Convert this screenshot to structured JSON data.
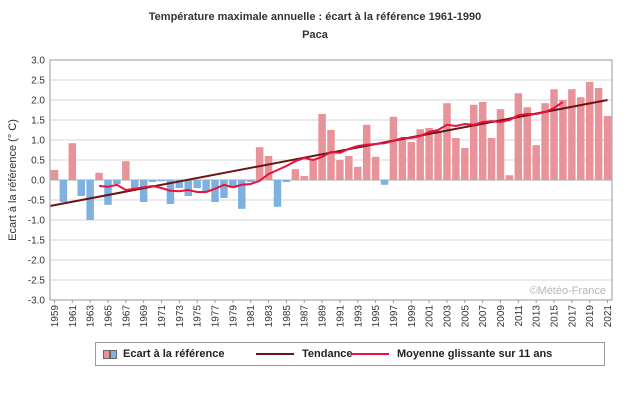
{
  "chart_data": {
    "type": "bar",
    "title": "Température maximale annuelle : écart à la référence 1961-1990",
    "subtitle": "Paca",
    "ylabel": "Ecart à la référence (° C)",
    "xlabel": "",
    "ylim": [
      -3.0,
      3.0
    ],
    "yticks": [
      "3.0",
      "2.5",
      "2.0",
      "1.5",
      "1.0",
      "0.5",
      "0.0",
      "-0.5",
      "-1.0",
      "-1.5",
      "-2.0",
      "-2.5",
      "-3.0"
    ],
    "xticks": [
      "1959",
      "1961",
      "1963",
      "1965",
      "1967",
      "1969",
      "1971",
      "1973",
      "1975",
      "1977",
      "1979",
      "1981",
      "1983",
      "1985",
      "1987",
      "1989",
      "1991",
      "1993",
      "1995",
      "1997",
      "1999",
      "2001",
      "2003",
      "2005",
      "2007",
      "2009",
      "2011",
      "2013",
      "2015",
      "2017",
      "2019",
      "2021"
    ],
    "years": [
      1959,
      1960,
      1961,
      1962,
      1963,
      1964,
      1965,
      1966,
      1967,
      1968,
      1969,
      1970,
      1971,
      1972,
      1973,
      1974,
      1975,
      1976,
      1977,
      1978,
      1979,
      1980,
      1981,
      1982,
      1983,
      1984,
      1985,
      1986,
      1987,
      1988,
      1989,
      1990,
      1991,
      1992,
      1993,
      1994,
      1995,
      1996,
      1997,
      1998,
      1999,
      2000,
      2001,
      2002,
      2003,
      2004,
      2005,
      2006,
      2007,
      2008,
      2009,
      2010,
      2011,
      2012,
      2013,
      2014,
      2015,
      2016,
      2017,
      2018,
      2019,
      2020,
      2021
    ],
    "series": [
      {
        "name": "Ecart à la référence",
        "values": [
          0.25,
          -0.55,
          0.92,
          -0.4,
          -1.0,
          0.18,
          -0.62,
          -0.1,
          0.47,
          -0.2,
          -0.55,
          -0.05,
          -0.03,
          -0.6,
          -0.2,
          -0.4,
          -0.2,
          -0.3,
          -0.55,
          -0.45,
          -0.2,
          -0.72,
          -0.05,
          0.82,
          0.6,
          -0.67,
          -0.05,
          0.27,
          0.1,
          0.5,
          1.65,
          1.25,
          0.5,
          0.6,
          0.33,
          1.38,
          0.58,
          -0.12,
          1.58,
          1.02,
          0.95,
          1.27,
          1.3,
          1.22,
          1.92,
          1.05,
          0.8,
          1.88,
          1.95,
          1.05,
          1.77,
          0.12,
          2.17,
          1.82,
          0.87,
          1.92,
          2.27,
          2.0,
          2.27,
          2.07,
          2.45,
          2.3,
          1.6
        ]
      },
      {
        "name": "Tendance",
        "values": [
          -0.65,
          2.0
        ]
      },
      {
        "name": "Moyenne glissante sur 11 ans",
        "x": [
          1964,
          1965,
          1966,
          1967,
          1968,
          1969,
          1970,
          1971,
          1972,
          1973,
          1974,
          1975,
          1976,
          1977,
          1978,
          1979,
          1980,
          1981,
          1982,
          1983,
          1984,
          1985,
          1986,
          1987,
          1988,
          1989,
          1990,
          1991,
          1992,
          1993,
          1994,
          1995,
          1996,
          1997,
          1998,
          1999,
          2000,
          2001,
          2002,
          2003,
          2004,
          2005,
          2006,
          2007,
          2008,
          2009,
          2010,
          2011,
          2012,
          2013,
          2014,
          2015,
          2016
        ],
        "values": [
          -0.15,
          -0.17,
          -0.12,
          -0.25,
          -0.22,
          -0.18,
          -0.15,
          -0.2,
          -0.27,
          -0.28,
          -0.25,
          -0.3,
          -0.3,
          -0.22,
          -0.12,
          -0.18,
          -0.12,
          -0.1,
          -0.02,
          0.15,
          0.25,
          0.35,
          0.47,
          0.55,
          0.5,
          0.58,
          0.7,
          0.68,
          0.78,
          0.85,
          0.88,
          0.9,
          0.92,
          0.98,
          1.05,
          1.05,
          1.1,
          1.2,
          1.25,
          1.38,
          1.35,
          1.4,
          1.38,
          1.45,
          1.47,
          1.45,
          1.5,
          1.62,
          1.65,
          1.65,
          1.7,
          1.8,
          1.95
        ]
      }
    ],
    "colors": {
      "positive": "#e8929a",
      "negative": "#7fb1e0",
      "trend": "#6b1414",
      "moving_average": "#e8123c",
      "grid": "#d4d4d4"
    },
    "grid": true,
    "legend_position": "bottom"
  },
  "legend": {
    "bars_label": "Ecart à la référence",
    "trend_label": "Tendance",
    "moving_label": "Moyenne glissante sur 11 ans"
  },
  "watermark": "©Météo-France"
}
